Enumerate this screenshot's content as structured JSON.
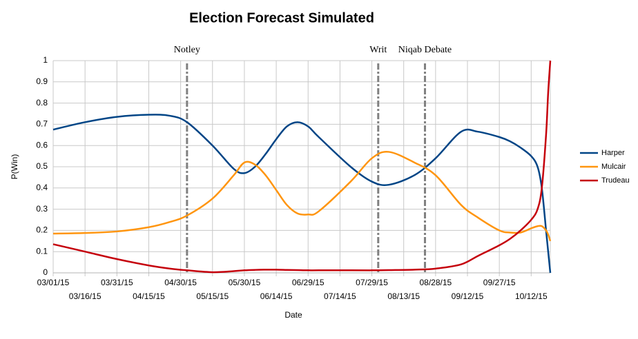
{
  "chart_data": {
    "type": "line",
    "title": "Election Forecast Simulated",
    "x_label": "Date",
    "y_label": "P(Win)",
    "x": [
      "03/01/15",
      "03/16/15",
      "03/31/15",
      "04/15/15",
      "04/25/15",
      "05/03/15",
      "05/15/15",
      "05/25/15",
      "05/30/15",
      "06/04/15",
      "06/09/15",
      "06/14/15",
      "06/19/15",
      "06/24/15",
      "06/29/15",
      "07/04/15",
      "07/19/15",
      "07/29/15",
      "08/06/15",
      "08/18/15",
      "08/28/15",
      "09/09/15",
      "09/17/15",
      "09/27/15",
      "10/02/15",
      "10/07/15",
      "10/12/15",
      "10/15/15",
      "10/17/15",
      "10/19/15",
      "10/20/15",
      "10/21/15"
    ],
    "series": [
      {
        "name": "Harper",
        "color": "#004586",
        "values": [
          0.675,
          0.71,
          0.735,
          0.745,
          0.74,
          0.71,
          0.6,
          0.49,
          0.47,
          0.5,
          0.56,
          0.63,
          0.69,
          0.71,
          0.69,
          0.64,
          0.5,
          0.43,
          0.415,
          0.46,
          0.54,
          0.665,
          0.665,
          0.64,
          0.62,
          0.59,
          0.55,
          0.5,
          0.4,
          0.2,
          0.1,
          0.0
        ]
      },
      {
        "name": "Mulcair",
        "color": "#ff950e",
        "values": [
          0.185,
          0.188,
          0.195,
          0.215,
          0.24,
          0.27,
          0.35,
          0.46,
          0.52,
          0.51,
          0.46,
          0.39,
          0.32,
          0.28,
          0.275,
          0.29,
          0.43,
          0.54,
          0.57,
          0.52,
          0.46,
          0.32,
          0.26,
          0.2,
          0.19,
          0.19,
          0.21,
          0.22,
          0.22,
          0.2,
          0.18,
          0.15
        ]
      },
      {
        "name": "Trudeau",
        "color": "#c5000b",
        "values": [
          0.135,
          0.1,
          0.065,
          0.035,
          0.02,
          0.012,
          0.003,
          0.008,
          0.012,
          0.014,
          0.015,
          0.015,
          0.014,
          0.013,
          0.012,
          0.012,
          0.012,
          0.012,
          0.013,
          0.015,
          0.02,
          0.04,
          0.08,
          0.13,
          0.16,
          0.2,
          0.25,
          0.3,
          0.4,
          0.65,
          0.85,
          1.0
        ]
      }
    ],
    "xlim": [
      "03/01/15",
      "10/21/15"
    ],
    "xticks": [
      "03/01/15",
      "03/16/15",
      "03/31/15",
      "04/15/15",
      "04/30/15",
      "05/15/15",
      "05/30/15",
      "06/14/15",
      "06/29/15",
      "07/14/15",
      "07/29/15",
      "08/13/15",
      "08/28/15",
      "09/12/15",
      "09/27/15",
      "10/12/15"
    ],
    "ylim": [
      0,
      1
    ],
    "yticks": [
      0,
      0.1,
      0.2,
      0.3,
      0.4,
      0.5,
      0.6,
      0.7,
      0.8,
      0.9,
      1
    ],
    "grid": true,
    "legend": "right",
    "events": [
      {
        "label": "Notley",
        "x": "05/03/15"
      },
      {
        "label": "Writ",
        "x": "08/01/15"
      },
      {
        "label": "Niqab Debate",
        "x": "08/23/15"
      }
    ]
  }
}
